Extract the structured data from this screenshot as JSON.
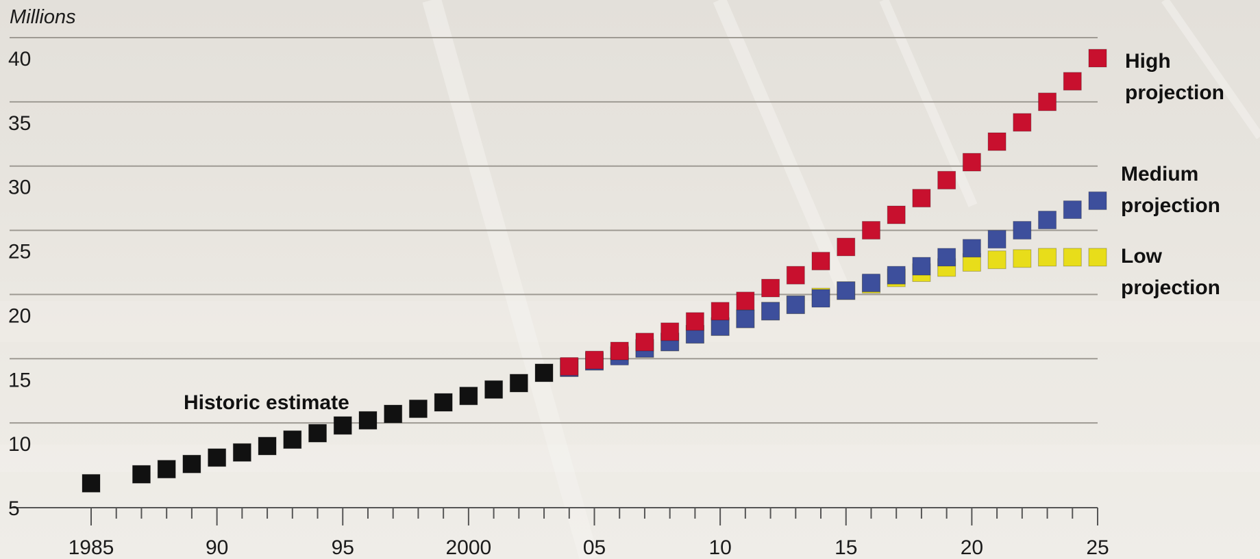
{
  "chart_data": {
    "type": "scatter",
    "unit_label": "Millions",
    "ylim": [
      5,
      42
    ],
    "yticks": [
      5,
      10,
      15,
      20,
      25,
      30,
      35,
      40
    ],
    "xlim": [
      1985,
      2025
    ],
    "xtick_labels": [
      {
        "value": 1985,
        "label": "1985"
      },
      {
        "value": 1990,
        "label": "90"
      },
      {
        "value": 1995,
        "label": "95"
      },
      {
        "value": 2000,
        "label": "2000"
      },
      {
        "value": 2005,
        "label": "05"
      },
      {
        "value": 2010,
        "label": "10"
      },
      {
        "value": 2015,
        "label": "15"
      },
      {
        "value": 2020,
        "label": "20"
      },
      {
        "value": 2025,
        "label": "25"
      }
    ],
    "grid": true,
    "series": [
      {
        "name": "Historic estimate",
        "color": "#111111",
        "x": [
          1985,
          1987,
          1988,
          1989,
          1990,
          1991,
          1992,
          1993,
          1994,
          1995,
          1996,
          1997,
          1998,
          1999,
          2000,
          2001,
          2002,
          2003
        ],
        "y": [
          6.9,
          7.6,
          8.0,
          8.4,
          8.9,
          9.3,
          9.8,
          10.3,
          10.8,
          11.4,
          11.8,
          12.3,
          12.7,
          13.2,
          13.7,
          14.2,
          14.7,
          15.5
        ]
      },
      {
        "name": "Low projection",
        "color": "#e8dd1a",
        "x": [
          2004,
          2005,
          2006,
          2007,
          2008,
          2009,
          2010,
          2011,
          2012,
          2013,
          2014,
          2015,
          2016,
          2017,
          2018,
          2019,
          2020,
          2021,
          2022,
          2023,
          2024,
          2025
        ],
        "y": [
          15.9,
          16.4,
          16.9,
          17.4,
          17.9,
          18.5,
          19.1,
          19.7,
          20.3,
          20.8,
          21.4,
          21.9,
          22.4,
          22.9,
          23.3,
          23.7,
          24.1,
          24.3,
          24.4,
          24.5,
          24.5,
          24.5
        ]
      },
      {
        "name": "Medium projection",
        "color": "#3d4f9c",
        "x": [
          2004,
          2005,
          2006,
          2007,
          2008,
          2009,
          2010,
          2011,
          2012,
          2013,
          2014,
          2015,
          2016,
          2017,
          2018,
          2019,
          2020,
          2021,
          2022,
          2023,
          2024,
          2025
        ],
        "y": [
          15.9,
          16.4,
          16.8,
          17.4,
          17.9,
          18.5,
          19.1,
          19.7,
          20.3,
          20.8,
          21.3,
          21.9,
          22.5,
          23.1,
          23.8,
          24.5,
          25.2,
          25.9,
          26.6,
          27.4,
          28.2,
          28.9
        ]
      },
      {
        "name": "High projection",
        "color": "#c8102e",
        "x": [
          2004,
          2005,
          2006,
          2007,
          2008,
          2009,
          2010,
          2011,
          2012,
          2013,
          2014,
          2015,
          2016,
          2017,
          2018,
          2019,
          2020,
          2021,
          2022,
          2023,
          2024,
          2025
        ],
        "y": [
          16.0,
          16.5,
          17.2,
          17.9,
          18.7,
          19.5,
          20.3,
          21.1,
          22.1,
          23.1,
          24.2,
          25.3,
          26.6,
          27.8,
          29.1,
          30.5,
          31.9,
          33.5,
          35.0,
          36.6,
          38.2,
          40.0
        ]
      }
    ],
    "labels": {
      "historic": "Historic estimate",
      "high": [
        "High",
        "projection"
      ],
      "medium": [
        "Medium",
        "projection"
      ],
      "low": [
        "Low",
        "projection"
      ]
    }
  }
}
